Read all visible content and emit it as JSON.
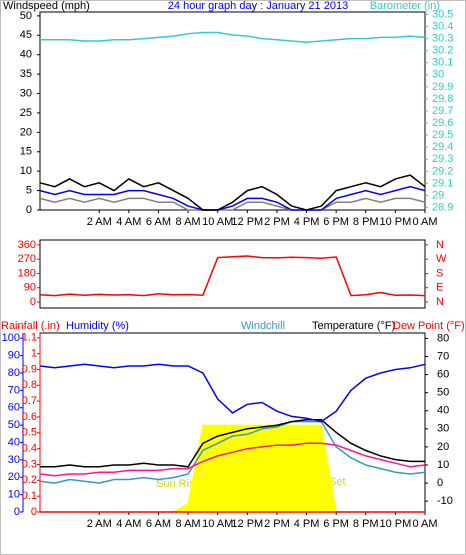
{
  "chart_data": [
    {
      "type": "line",
      "title": "24 hour graph day : January 21 2013",
      "ylabel": "Windspeed (mph)",
      "y2label": "Barometer (in)",
      "x": [
        -2,
        -1,
        0,
        1,
        2,
        3,
        4,
        5,
        6,
        7,
        8,
        9,
        10,
        11,
        12,
        13,
        14,
        15,
        16,
        17,
        18,
        19,
        20,
        21,
        22,
        23,
        24
      ],
      "xlim": [
        -2,
        24
      ],
      "xticks": [
        {
          "value": 2,
          "label": "2 AM"
        },
        {
          "value": 4,
          "label": "4 AM"
        },
        {
          "value": 6,
          "label": "6 AM"
        },
        {
          "value": 8,
          "label": "8 AM"
        },
        {
          "value": 10,
          "label": "10 AM"
        },
        {
          "value": 12,
          "label": "12 PM"
        },
        {
          "value": 14,
          "label": "2 PM"
        },
        {
          "value": 16,
          "label": "4 PM"
        },
        {
          "value": 18,
          "label": "6 PM"
        },
        {
          "value": 20,
          "label": "8 PM"
        },
        {
          "value": 22,
          "label": "10 PM"
        },
        {
          "value": 24,
          "label": "0 AM"
        }
      ],
      "ylim": [
        0,
        51
      ],
      "yticks": [
        0,
        5,
        10,
        15,
        20,
        25,
        30,
        35,
        40,
        45,
        50
      ],
      "y2lim": [
        28.88,
        30.52
      ],
      "y2ticks": [
        28.9,
        29,
        29.1,
        29.2,
        29.3,
        29.4,
        29.5,
        29.6,
        29.7,
        29.8,
        29.9,
        30,
        30.1,
        30.2,
        30.3,
        30.4,
        30.5
      ],
      "series": [
        {
          "color": "#808080",
          "values": [
            3,
            2,
            3,
            2,
            3,
            2,
            3,
            3,
            2,
            2,
            0,
            0,
            0,
            0,
            2,
            2,
            1,
            0,
            0,
            0,
            2,
            2,
            3,
            2,
            3,
            3,
            2
          ]
        },
        {
          "color": "#0000ff",
          "values": [
            5,
            4,
            5,
            4,
            4,
            4,
            5,
            5,
            4,
            3,
            1,
            0,
            0,
            1,
            3,
            3,
            2,
            0,
            0,
            0,
            3,
            4,
            5,
            4,
            5,
            6,
            5
          ]
        },
        {
          "color": "#000000",
          "values": [
            7,
            6,
            8,
            6,
            7,
            5,
            8,
            6,
            7,
            5,
            3,
            0,
            0,
            2,
            5,
            6,
            4,
            1,
            0,
            1,
            5,
            6,
            7,
            6,
            8,
            9,
            6
          ]
        },
        {
          "color": "#33cccc",
          "axis": "y2",
          "values": [
            30.29,
            30.29,
            30.29,
            30.28,
            30.28,
            30.29,
            30.29,
            30.3,
            30.31,
            30.32,
            30.34,
            30.35,
            30.35,
            30.33,
            30.32,
            30.3,
            30.29,
            30.28,
            30.27,
            30.28,
            30.29,
            30.3,
            30.3,
            30.31,
            30.31,
            30.32,
            30.31
          ]
        }
      ]
    },
    {
      "type": "line",
      "x": [
        -2,
        -1,
        0,
        1,
        2,
        3,
        4,
        5,
        6,
        7,
        8,
        9,
        10,
        11,
        12,
        13,
        14,
        15,
        16,
        17,
        18,
        19,
        20,
        21,
        22,
        23,
        24
      ],
      "xlim": [
        -2,
        24
      ],
      "ylim": [
        -38,
        391
      ],
      "yticks": [
        0,
        90,
        180,
        270,
        360
      ],
      "y2lim": [
        -38,
        391
      ],
      "y2ticks": [
        {
          "value": 0,
          "label": "N"
        },
        {
          "value": 90,
          "label": "E"
        },
        {
          "value": 180,
          "label": "S"
        },
        {
          "value": 270,
          "label": "W"
        },
        {
          "value": 360,
          "label": "N"
        }
      ],
      "series": [
        {
          "color": "#ff0000",
          "values": [
            45,
            40,
            50,
            42,
            48,
            44,
            46,
            40,
            52,
            45,
            47,
            43,
            280,
            285,
            290,
            280,
            278,
            282,
            280,
            276,
            284,
            40,
            45,
            60,
            42,
            44,
            40
          ]
        }
      ]
    },
    {
      "type": "line",
      "ylabel": "Humidity (%)",
      "y2label": "Temperature (°F)",
      "y3label": "Rainfall (.in)",
      "annotations": [
        "Sun Rise",
        "Set"
      ],
      "x": [
        -2,
        -1,
        0,
        1,
        2,
        3,
        4,
        5,
        6,
        7,
        8,
        9,
        10,
        11,
        12,
        13,
        14,
        15,
        16,
        17,
        18,
        19,
        20,
        21,
        22,
        23,
        24
      ],
      "xlim": [
        -2,
        24
      ],
      "xticks": [
        {
          "value": 2,
          "label": "2 AM"
        },
        {
          "value": 4,
          "label": "4 AM"
        },
        {
          "value": 6,
          "label": "6 AM"
        },
        {
          "value": 8,
          "label": "8 AM"
        },
        {
          "value": 10,
          "label": "10 AM"
        },
        {
          "value": 12,
          "label": "12 PM"
        },
        {
          "value": 14,
          "label": "2 PM"
        },
        {
          "value": 16,
          "label": "4 PM"
        },
        {
          "value": 18,
          "label": "6 PM"
        },
        {
          "value": 20,
          "label": "8 PM"
        },
        {
          "value": 22,
          "label": "10 PM"
        },
        {
          "value": 24,
          "label": "0 AM"
        }
      ],
      "ylim": [
        0,
        103
      ],
      "yticks": [
        0,
        10,
        20,
        30,
        40,
        50,
        60,
        70,
        80,
        90,
        100
      ],
      "y2lim": [
        -16,
        83
      ],
      "y2ticks": [
        -10,
        0,
        10,
        20,
        30,
        40,
        50,
        60,
        70,
        80
      ],
      "y3lim": [
        0,
        1.13
      ],
      "y3ticks": [
        0,
        0.1,
        0.2,
        0.3,
        0.4,
        0.5,
        0.6,
        0.7,
        0.8,
        0.9,
        1,
        1.1
      ],
      "series": [
        {
          "color": "#ffff00",
          "style": "area",
          "values": [
            0,
            0,
            0,
            0,
            0,
            0,
            0,
            0,
            0,
            0,
            5,
            50,
            50,
            50,
            50,
            50,
            50,
            50,
            50,
            50,
            0,
            0,
            0,
            0,
            0,
            0,
            0
          ]
        },
        {
          "color": "#ff0000",
          "axis": "y3",
          "values": [
            0,
            0,
            0,
            0,
            0,
            0,
            0,
            0,
            0,
            0,
            0,
            0,
            0,
            0,
            0,
            0,
            0,
            0,
            0,
            0,
            0,
            0,
            0,
            0,
            0,
            0,
            0
          ]
        },
        {
          "name": "Windchill",
          "color": "#3399cc",
          "axis": "y2",
          "values": [
            1,
            0,
            2,
            1,
            0,
            2,
            2,
            3,
            2,
            3,
            5,
            18,
            22,
            26,
            27,
            30,
            31,
            34,
            34,
            34,
            20,
            14,
            10,
            8,
            6,
            5,
            6
          ]
        },
        {
          "name": "Dew Point (°F)",
          "color": "#ff1493",
          "axis": "y2",
          "values": [
            5,
            4,
            5,
            5,
            6,
            6,
            7,
            7,
            7,
            8,
            8,
            12,
            15,
            17,
            19,
            20,
            21,
            21,
            22,
            22,
            21,
            18,
            15,
            13,
            11,
            9,
            10
          ]
        },
        {
          "color": "#000000",
          "axis": "y2",
          "values": [
            9,
            9,
            10,
            9,
            9,
            10,
            10,
            11,
            10,
            10,
            9,
            22,
            26,
            28,
            30,
            31,
            32,
            34,
            35,
            35,
            28,
            22,
            18,
            15,
            13,
            12,
            12
          ]
        },
        {
          "color": "#0000ff",
          "values": [
            84,
            83,
            84,
            85,
            84,
            83,
            84,
            84,
            85,
            84,
            84,
            80,
            65,
            57,
            62,
            63,
            58,
            55,
            54,
            52,
            58,
            70,
            77,
            80,
            82,
            83,
            85
          ]
        }
      ]
    }
  ]
}
